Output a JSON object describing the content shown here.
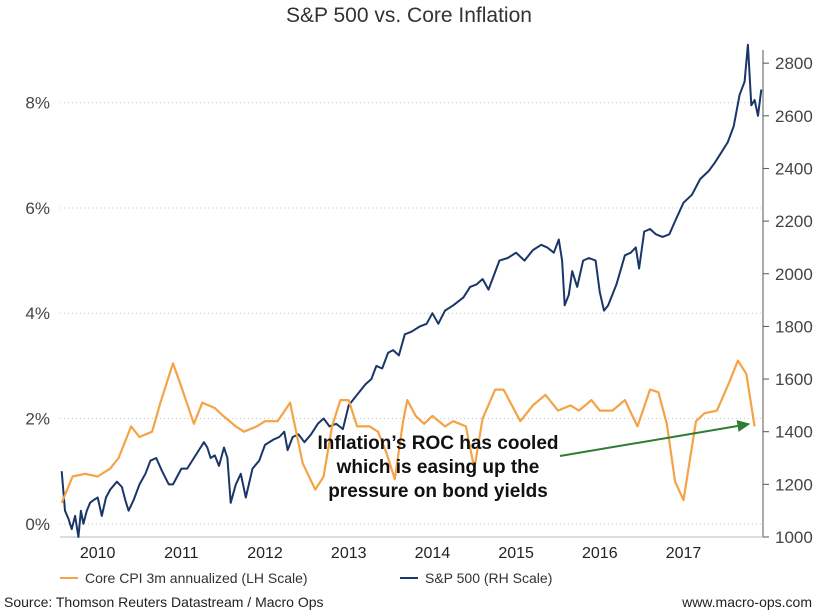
{
  "chart_data": {
    "type": "line",
    "title": "S&P 500 vs. Core Inflation",
    "left_axis": {
      "label": "",
      "ylim": [
        -0.0025,
        0.09
      ],
      "ticks": [
        0,
        0.02,
        0.04,
        0.06,
        0.08
      ],
      "tick_labels": [
        "0%",
        "2%",
        "4%",
        "6%",
        "8%"
      ],
      "grid": true
    },
    "right_axis": {
      "label": "",
      "ylim": [
        1000,
        2850
      ],
      "ticks": [
        1000,
        1200,
        1400,
        1600,
        1800,
        2000,
        2200,
        2400,
        2600,
        2800
      ],
      "tick_labels": [
        "1000",
        "1200",
        "1400",
        "1600",
        "1800",
        "2000",
        "2200",
        "2400",
        "2600",
        "2800"
      ]
    },
    "x_axis": {
      "range": [
        2009.6,
        2018.0
      ],
      "tick_labels": [
        "2010",
        "2011",
        "2012",
        "2013",
        "2014",
        "2015",
        "2016",
        "2017"
      ],
      "tick_positions": [
        2010.05,
        2011.05,
        2012.05,
        2013.05,
        2014.05,
        2015.05,
        2016.05,
        2017.05
      ]
    },
    "series": [
      {
        "name": "Core CPI 3m annualized (LH Scale)",
        "axis": "left",
        "color": "#f4a347",
        "x": [
          2009.62,
          2009.75,
          2009.9,
          2010.05,
          2010.2,
          2010.3,
          2010.45,
          2010.55,
          2010.7,
          2010.8,
          2010.95,
          2011.05,
          2011.2,
          2011.3,
          2011.45,
          2011.55,
          2011.7,
          2011.8,
          2011.95,
          2012.05,
          2012.2,
          2012.35,
          2012.5,
          2012.65,
          2012.75,
          2012.85,
          2012.95,
          2013.05,
          2013.15,
          2013.3,
          2013.4,
          2013.5,
          2013.6,
          2013.7,
          2013.75,
          2013.85,
          2013.95,
          2014.05,
          2014.2,
          2014.3,
          2014.45,
          2014.55,
          2014.65,
          2014.8,
          2014.9,
          2015.0,
          2015.1,
          2015.25,
          2015.4,
          2015.55,
          2015.7,
          2015.8,
          2015.95,
          2016.05,
          2016.2,
          2016.35,
          2016.5,
          2016.65,
          2016.75,
          2016.85,
          2016.95,
          2017.05,
          2017.2,
          2017.3,
          2017.45,
          2017.6,
          2017.7,
          2017.8,
          2017.9
        ],
        "values": [
          0.004,
          0.009,
          0.0095,
          0.009,
          0.0105,
          0.0125,
          0.0185,
          0.0165,
          0.0175,
          0.023,
          0.0305,
          0.026,
          0.019,
          0.023,
          0.022,
          0.0205,
          0.0185,
          0.0175,
          0.0185,
          0.0195,
          0.0195,
          0.023,
          0.0115,
          0.0065,
          0.009,
          0.0185,
          0.0235,
          0.0235,
          0.0185,
          0.0185,
          0.0175,
          0.0135,
          0.0085,
          0.0195,
          0.0235,
          0.0205,
          0.019,
          0.0205,
          0.0185,
          0.0195,
          0.0185,
          0.0105,
          0.02,
          0.0255,
          0.0255,
          0.0225,
          0.0195,
          0.0225,
          0.0245,
          0.0215,
          0.0225,
          0.0215,
          0.0235,
          0.0215,
          0.0215,
          0.0235,
          0.0185,
          0.0255,
          0.025,
          0.019,
          0.008,
          0.0045,
          0.0195,
          0.021,
          0.0215,
          0.027,
          0.031,
          0.0285,
          0.0185
        ]
      },
      {
        "name": "S&P 500 (RH Scale)",
        "axis": "right",
        "color": "#1a3668",
        "x": [
          2009.62,
          2009.66,
          2009.7,
          2009.74,
          2009.78,
          2009.82,
          2009.85,
          2009.88,
          2009.92,
          2009.96,
          2010.0,
          2010.05,
          2010.1,
          2010.15,
          2010.2,
          2010.28,
          2010.34,
          2010.38,
          2010.42,
          2010.48,
          2010.55,
          2010.62,
          2010.68,
          2010.75,
          2010.82,
          2010.9,
          2010.95,
          2011.05,
          2011.12,
          2011.2,
          2011.26,
          2011.32,
          2011.36,
          2011.4,
          2011.45,
          2011.5,
          2011.56,
          2011.6,
          2011.64,
          2011.7,
          2011.76,
          2011.82,
          2011.9,
          2011.98,
          2012.05,
          2012.15,
          2012.22,
          2012.28,
          2012.32,
          2012.38,
          2012.45,
          2012.52,
          2012.6,
          2012.68,
          2012.75,
          2012.82,
          2012.9,
          2012.98,
          2013.05,
          2013.15,
          2013.25,
          2013.32,
          2013.38,
          2013.45,
          2013.52,
          2013.58,
          2013.65,
          2013.72,
          2013.8,
          2013.9,
          2013.98,
          2014.05,
          2014.12,
          2014.2,
          2014.3,
          2014.42,
          2014.5,
          2014.58,
          2014.65,
          2014.72,
          2014.78,
          2014.85,
          2014.95,
          2015.05,
          2015.15,
          2015.25,
          2015.35,
          2015.42,
          2015.5,
          2015.56,
          2015.6,
          2015.63,
          2015.68,
          2015.72,
          2015.78,
          2015.85,
          2015.92,
          2016.0,
          2016.05,
          2016.1,
          2016.15,
          2016.25,
          2016.35,
          2016.42,
          2016.48,
          2016.52,
          2016.58,
          2016.65,
          2016.72,
          2016.8,
          2016.88,
          2016.95,
          2017.05,
          2017.15,
          2017.25,
          2017.35,
          2017.42,
          2017.5,
          2017.58,
          2017.65,
          2017.72,
          2017.78,
          2017.82,
          2017.86,
          2017.9,
          2017.94,
          2017.98
        ],
        "values": [
          1250,
          1100,
          1070,
          1030,
          1080,
          1000,
          1100,
          1050,
          1100,
          1130,
          1140,
          1150,
          1080,
          1150,
          1180,
          1210,
          1190,
          1140,
          1100,
          1140,
          1200,
          1240,
          1290,
          1300,
          1250,
          1200,
          1200,
          1260,
          1260,
          1300,
          1330,
          1360,
          1340,
          1300,
          1310,
          1270,
          1340,
          1300,
          1130,
          1200,
          1240,
          1150,
          1260,
          1290,
          1350,
          1370,
          1380,
          1400,
          1330,
          1380,
          1390,
          1360,
          1390,
          1430,
          1450,
          1420,
          1430,
          1410,
          1500,
          1540,
          1580,
          1600,
          1650,
          1640,
          1700,
          1710,
          1690,
          1770,
          1780,
          1800,
          1810,
          1850,
          1810,
          1860,
          1880,
          1910,
          1950,
          1960,
          1980,
          1940,
          1990,
          2050,
          2060,
          2080,
          2050,
          2090,
          2110,
          2100,
          2080,
          2130,
          2050,
          1880,
          1920,
          2010,
          1950,
          2050,
          2060,
          2050,
          1930,
          1860,
          1880,
          1960,
          2070,
          2080,
          2100,
          2020,
          2160,
          2170,
          2150,
          2140,
          2150,
          2200,
          2270,
          2300,
          2360,
          2390,
          2420,
          2460,
          2500,
          2560,
          2680,
          2730,
          2870,
          2640,
          2660,
          2600,
          2700
        ]
      }
    ],
    "legend": {
      "position": "bottom"
    },
    "annotation": {
      "lines": [
        "Inflation’s ROC has cooled",
        "which is easing up the",
        "pressure on bond yields"
      ],
      "arrow_color": "#2e7d32",
      "arrow_target": {
        "x": 2017.85,
        "left_value": 0.019
      }
    }
  },
  "footer": {
    "source": "Source: Thomson Reuters Datastream / Macro Ops",
    "site": "www.macro-ops.com"
  }
}
